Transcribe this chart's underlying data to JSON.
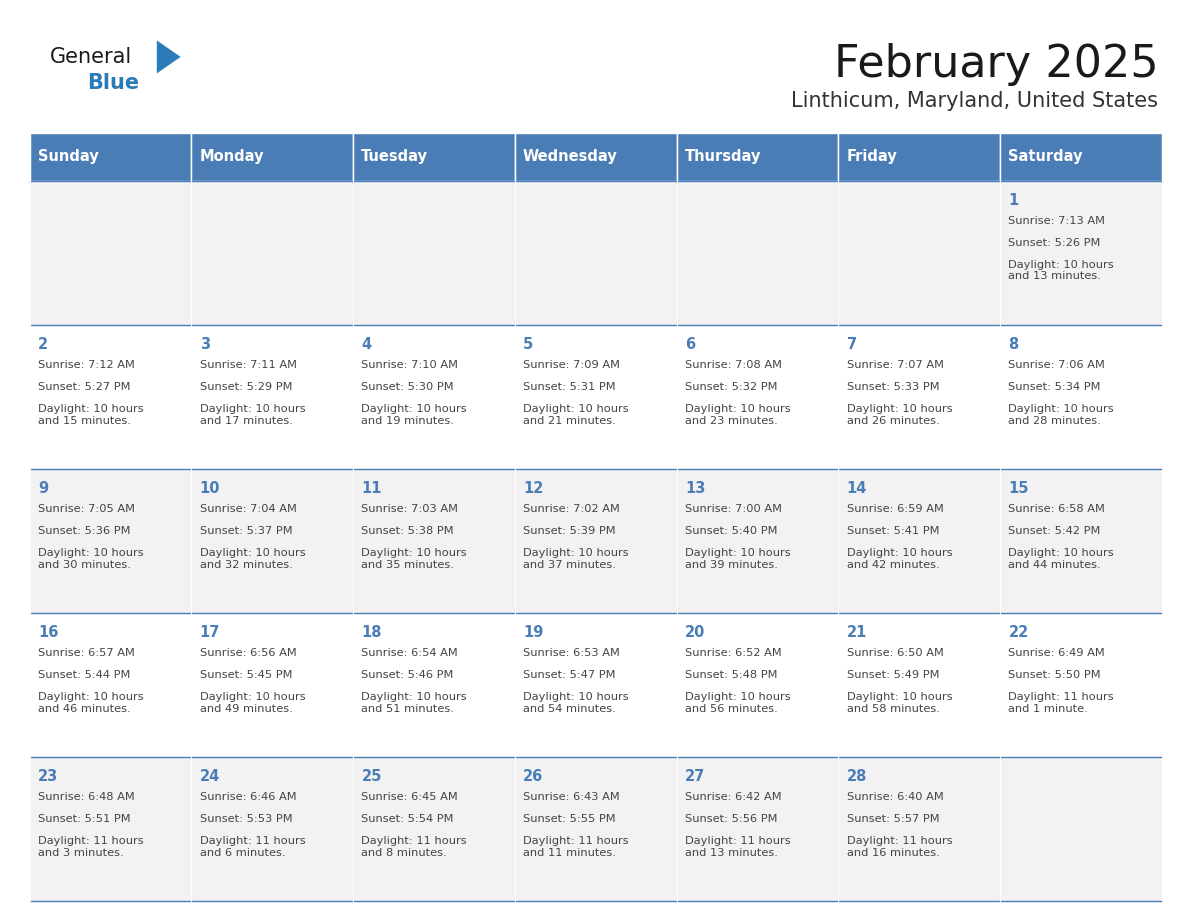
{
  "title": "February 2025",
  "subtitle": "Linthicum, Maryland, United States",
  "header_bg": "#4A7DB5",
  "header_text_color": "#FFFFFF",
  "day_names": [
    "Sunday",
    "Monday",
    "Tuesday",
    "Wednesday",
    "Thursday",
    "Friday",
    "Saturday"
  ],
  "row_bg_even": "#F2F2F2",
  "row_bg_odd": "#FFFFFF",
  "cell_border_color": "#4A7DB5",
  "text_color": "#444444",
  "day_num_color": "#4A7DB5",
  "calendar_data": [
    [
      null,
      null,
      null,
      null,
      null,
      null,
      {
        "day": "1",
        "sunrise": "7:13 AM",
        "sunset": "5:26 PM",
        "daylight": "10 hours\nand 13 minutes."
      }
    ],
    [
      {
        "day": "2",
        "sunrise": "7:12 AM",
        "sunset": "5:27 PM",
        "daylight": "10 hours\nand 15 minutes."
      },
      {
        "day": "3",
        "sunrise": "7:11 AM",
        "sunset": "5:29 PM",
        "daylight": "10 hours\nand 17 minutes."
      },
      {
        "day": "4",
        "sunrise": "7:10 AM",
        "sunset": "5:30 PM",
        "daylight": "10 hours\nand 19 minutes."
      },
      {
        "day": "5",
        "sunrise": "7:09 AM",
        "sunset": "5:31 PM",
        "daylight": "10 hours\nand 21 minutes."
      },
      {
        "day": "6",
        "sunrise": "7:08 AM",
        "sunset": "5:32 PM",
        "daylight": "10 hours\nand 23 minutes."
      },
      {
        "day": "7",
        "sunrise": "7:07 AM",
        "sunset": "5:33 PM",
        "daylight": "10 hours\nand 26 minutes."
      },
      {
        "day": "8",
        "sunrise": "7:06 AM",
        "sunset": "5:34 PM",
        "daylight": "10 hours\nand 28 minutes."
      }
    ],
    [
      {
        "day": "9",
        "sunrise": "7:05 AM",
        "sunset": "5:36 PM",
        "daylight": "10 hours\nand 30 minutes."
      },
      {
        "day": "10",
        "sunrise": "7:04 AM",
        "sunset": "5:37 PM",
        "daylight": "10 hours\nand 32 minutes."
      },
      {
        "day": "11",
        "sunrise": "7:03 AM",
        "sunset": "5:38 PM",
        "daylight": "10 hours\nand 35 minutes."
      },
      {
        "day": "12",
        "sunrise": "7:02 AM",
        "sunset": "5:39 PM",
        "daylight": "10 hours\nand 37 minutes."
      },
      {
        "day": "13",
        "sunrise": "7:00 AM",
        "sunset": "5:40 PM",
        "daylight": "10 hours\nand 39 minutes."
      },
      {
        "day": "14",
        "sunrise": "6:59 AM",
        "sunset": "5:41 PM",
        "daylight": "10 hours\nand 42 minutes."
      },
      {
        "day": "15",
        "sunrise": "6:58 AM",
        "sunset": "5:42 PM",
        "daylight": "10 hours\nand 44 minutes."
      }
    ],
    [
      {
        "day": "16",
        "sunrise": "6:57 AM",
        "sunset": "5:44 PM",
        "daylight": "10 hours\nand 46 minutes."
      },
      {
        "day": "17",
        "sunrise": "6:56 AM",
        "sunset": "5:45 PM",
        "daylight": "10 hours\nand 49 minutes."
      },
      {
        "day": "18",
        "sunrise": "6:54 AM",
        "sunset": "5:46 PM",
        "daylight": "10 hours\nand 51 minutes."
      },
      {
        "day": "19",
        "sunrise": "6:53 AM",
        "sunset": "5:47 PM",
        "daylight": "10 hours\nand 54 minutes."
      },
      {
        "day": "20",
        "sunrise": "6:52 AM",
        "sunset": "5:48 PM",
        "daylight": "10 hours\nand 56 minutes."
      },
      {
        "day": "21",
        "sunrise": "6:50 AM",
        "sunset": "5:49 PM",
        "daylight": "10 hours\nand 58 minutes."
      },
      {
        "day": "22",
        "sunrise": "6:49 AM",
        "sunset": "5:50 PM",
        "daylight": "11 hours\nand 1 minute."
      }
    ],
    [
      {
        "day": "23",
        "sunrise": "6:48 AM",
        "sunset": "5:51 PM",
        "daylight": "11 hours\nand 3 minutes."
      },
      {
        "day": "24",
        "sunrise": "6:46 AM",
        "sunset": "5:53 PM",
        "daylight": "11 hours\nand 6 minutes."
      },
      {
        "day": "25",
        "sunrise": "6:45 AM",
        "sunset": "5:54 PM",
        "daylight": "11 hours\nand 8 minutes."
      },
      {
        "day": "26",
        "sunrise": "6:43 AM",
        "sunset": "5:55 PM",
        "daylight": "11 hours\nand 11 minutes."
      },
      {
        "day": "27",
        "sunrise": "6:42 AM",
        "sunset": "5:56 PM",
        "daylight": "11 hours\nand 13 minutes."
      },
      {
        "day": "28",
        "sunrise": "6:40 AM",
        "sunset": "5:57 PM",
        "daylight": "11 hours\nand 16 minutes."
      },
      null
    ]
  ]
}
